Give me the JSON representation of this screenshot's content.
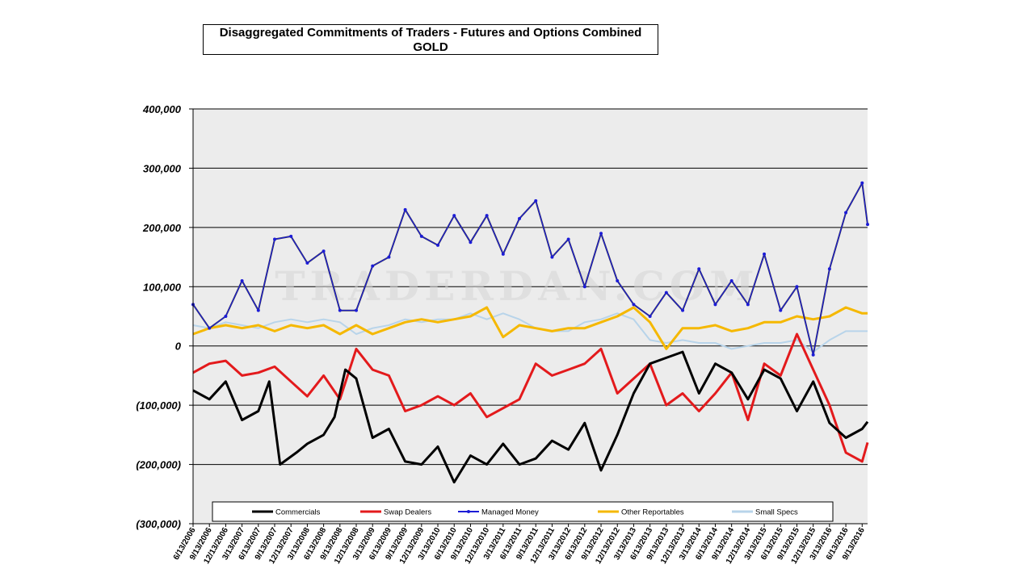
{
  "chart_data": {
    "type": "line",
    "title": "Disaggregated Commitments of Traders - Futures and Options Combined",
    "subtitle": "GOLD",
    "watermark": "TRADERDAN.COM",
    "ylim": [
      -300000,
      400000
    ],
    "yticks": [
      400000,
      300000,
      200000,
      100000,
      0,
      -100000,
      -200000,
      -300000
    ],
    "ytick_labels": [
      "400,000",
      "300,000",
      "200,000",
      "100,000",
      "0",
      "(100,000)",
      "(200,000)",
      "(300,000)"
    ],
    "x_start": "6/13/2006",
    "x_end": "10/11/2016",
    "xtick_labels": [
      "6/13/2006",
      "9/13/2006",
      "12/13/2006",
      "3/13/2007",
      "6/13/2007",
      "9/13/2007",
      "12/13/2007",
      "3/13/2008",
      "6/13/2008",
      "9/13/2008",
      "12/13/2008",
      "3/13/2009",
      "6/13/2009",
      "9/13/2009",
      "12/13/2009",
      "3/13/2010",
      "6/13/2010",
      "9/13/2010",
      "12/13/2010",
      "3/13/2011",
      "6/13/2011",
      "9/13/2011",
      "12/13/2011",
      "3/13/2012",
      "6/13/2012",
      "9/13/2012",
      "12/13/2012",
      "3/13/2013",
      "6/13/2013",
      "9/13/2013",
      "12/13/2013",
      "3/13/2014",
      "6/13/2014",
      "9/13/2014",
      "12/13/2014",
      "3/13/2015",
      "6/13/2015",
      "9/13/2015",
      "12/13/2015",
      "3/13/2016",
      "6/13/2016",
      "9/13/2016"
    ],
    "grid": "horizontal",
    "legend_position": "bottom",
    "series": [
      {
        "name": "Commercials",
        "color": "#000000",
        "points": [
          [
            "2006-06",
            -75000
          ],
          [
            "2006-09",
            -90000
          ],
          [
            "2006-12",
            -60000
          ],
          [
            "2007-03",
            -125000
          ],
          [
            "2007-06",
            -110000
          ],
          [
            "2007-08",
            -60000
          ],
          [
            "2007-10",
            -200000
          ],
          [
            "2008-01",
            -180000
          ],
          [
            "2008-03",
            -165000
          ],
          [
            "2008-06",
            -150000
          ],
          [
            "2008-08",
            -120000
          ],
          [
            "2008-10",
            -40000
          ],
          [
            "2008-12",
            -55000
          ],
          [
            "2009-03",
            -155000
          ],
          [
            "2009-06",
            -140000
          ],
          [
            "2009-09",
            -195000
          ],
          [
            "2009-12",
            -200000
          ],
          [
            "2010-03",
            -170000
          ],
          [
            "2010-06",
            -230000
          ],
          [
            "2010-09",
            -185000
          ],
          [
            "2010-12",
            -200000
          ],
          [
            "2011-03",
            -165000
          ],
          [
            "2011-06",
            -200000
          ],
          [
            "2011-09",
            -190000
          ],
          [
            "2011-12",
            -160000
          ],
          [
            "2012-03",
            -175000
          ],
          [
            "2012-06",
            -130000
          ],
          [
            "2012-09",
            -210000
          ],
          [
            "2012-12",
            -150000
          ],
          [
            "2013-03",
            -80000
          ],
          [
            "2013-06",
            -30000
          ],
          [
            "2013-09",
            -20000
          ],
          [
            "2013-12",
            -10000
          ],
          [
            "2014-03",
            -80000
          ],
          [
            "2014-06",
            -30000
          ],
          [
            "2014-09",
            -45000
          ],
          [
            "2014-12",
            -90000
          ],
          [
            "2015-03",
            -40000
          ],
          [
            "2015-06",
            -55000
          ],
          [
            "2015-09",
            -110000
          ],
          [
            "2015-12",
            -60000
          ],
          [
            "2016-03",
            -130000
          ],
          [
            "2016-06",
            -155000
          ],
          [
            "2016-09",
            -140000
          ],
          [
            "2016-10",
            -128000
          ]
        ]
      },
      {
        "name": "Swap Dealers",
        "color": "#e31a1c",
        "points": [
          [
            "2006-06",
            -45000
          ],
          [
            "2006-09",
            -30000
          ],
          [
            "2006-12",
            -25000
          ],
          [
            "2007-03",
            -50000
          ],
          [
            "2007-06",
            -45000
          ],
          [
            "2007-09",
            -35000
          ],
          [
            "2007-12",
            -60000
          ],
          [
            "2008-03",
            -85000
          ],
          [
            "2008-06",
            -50000
          ],
          [
            "2008-09",
            -90000
          ],
          [
            "2008-12",
            -5000
          ],
          [
            "2009-03",
            -40000
          ],
          [
            "2009-06",
            -50000
          ],
          [
            "2009-09",
            -110000
          ],
          [
            "2009-12",
            -100000
          ],
          [
            "2010-03",
            -85000
          ],
          [
            "2010-06",
            -100000
          ],
          [
            "2010-09",
            -80000
          ],
          [
            "2010-12",
            -120000
          ],
          [
            "2011-03",
            -105000
          ],
          [
            "2011-06",
            -90000
          ],
          [
            "2011-09",
            -30000
          ],
          [
            "2011-12",
            -50000
          ],
          [
            "2012-03",
            -40000
          ],
          [
            "2012-06",
            -30000
          ],
          [
            "2012-09",
            -5000
          ],
          [
            "2012-12",
            -80000
          ],
          [
            "2013-03",
            -55000
          ],
          [
            "2013-06",
            -30000
          ],
          [
            "2013-09",
            -100000
          ],
          [
            "2013-12",
            -80000
          ],
          [
            "2014-03",
            -110000
          ],
          [
            "2014-06",
            -80000
          ],
          [
            "2014-09",
            -45000
          ],
          [
            "2014-12",
            -125000
          ],
          [
            "2015-03",
            -30000
          ],
          [
            "2015-06",
            -50000
          ],
          [
            "2015-09",
            20000
          ],
          [
            "2015-12",
            -40000
          ],
          [
            "2016-03",
            -100000
          ],
          [
            "2016-06",
            -180000
          ],
          [
            "2016-09",
            -195000
          ],
          [
            "2016-10",
            -163000
          ]
        ]
      },
      {
        "name": "Managed Money",
        "color": "#1c1cd6",
        "points": [
          [
            "2006-06",
            70000
          ],
          [
            "2006-09",
            30000
          ],
          [
            "2006-12",
            50000
          ],
          [
            "2007-03",
            110000
          ],
          [
            "2007-06",
            60000
          ],
          [
            "2007-09",
            180000
          ],
          [
            "2007-12",
            185000
          ],
          [
            "2008-03",
            140000
          ],
          [
            "2008-06",
            160000
          ],
          [
            "2008-09",
            60000
          ],
          [
            "2008-12",
            60000
          ],
          [
            "2009-03",
            135000
          ],
          [
            "2009-06",
            150000
          ],
          [
            "2009-09",
            230000
          ],
          [
            "2009-12",
            185000
          ],
          [
            "2010-03",
            170000
          ],
          [
            "2010-06",
            220000
          ],
          [
            "2010-09",
            175000
          ],
          [
            "2010-12",
            220000
          ],
          [
            "2011-03",
            155000
          ],
          [
            "2011-06",
            215000
          ],
          [
            "2011-09",
            245000
          ],
          [
            "2011-12",
            150000
          ],
          [
            "2012-03",
            180000
          ],
          [
            "2012-06",
            100000
          ],
          [
            "2012-09",
            190000
          ],
          [
            "2012-12",
            110000
          ],
          [
            "2013-03",
            70000
          ],
          [
            "2013-06",
            50000
          ],
          [
            "2013-09",
            90000
          ],
          [
            "2013-12",
            60000
          ],
          [
            "2014-03",
            130000
          ],
          [
            "2014-06",
            70000
          ],
          [
            "2014-09",
            110000
          ],
          [
            "2014-12",
            70000
          ],
          [
            "2015-03",
            155000
          ],
          [
            "2015-06",
            60000
          ],
          [
            "2015-09",
            100000
          ],
          [
            "2015-12",
            -15000
          ],
          [
            "2016-03",
            130000
          ],
          [
            "2016-06",
            225000
          ],
          [
            "2016-09",
            275000
          ],
          [
            "2016-10",
            205000
          ]
        ]
      },
      {
        "name": "Other Reportables",
        "color": "#f5b800",
        "points": [
          [
            "2006-06",
            20000
          ],
          [
            "2006-09",
            30000
          ],
          [
            "2006-12",
            35000
          ],
          [
            "2007-03",
            30000
          ],
          [
            "2007-06",
            35000
          ],
          [
            "2007-09",
            25000
          ],
          [
            "2007-12",
            35000
          ],
          [
            "2008-03",
            30000
          ],
          [
            "2008-06",
            35000
          ],
          [
            "2008-09",
            20000
          ],
          [
            "2008-12",
            35000
          ],
          [
            "2009-03",
            20000
          ],
          [
            "2009-06",
            30000
          ],
          [
            "2009-09",
            40000
          ],
          [
            "2009-12",
            45000
          ],
          [
            "2010-03",
            40000
          ],
          [
            "2010-06",
            45000
          ],
          [
            "2010-09",
            50000
          ],
          [
            "2010-12",
            65000
          ],
          [
            "2011-03",
            15000
          ],
          [
            "2011-06",
            35000
          ],
          [
            "2011-09",
            30000
          ],
          [
            "2011-12",
            25000
          ],
          [
            "2012-03",
            30000
          ],
          [
            "2012-06",
            30000
          ],
          [
            "2012-09",
            40000
          ],
          [
            "2012-12",
            50000
          ],
          [
            "2013-03",
            65000
          ],
          [
            "2013-06",
            40000
          ],
          [
            "2013-09",
            -5000
          ],
          [
            "2013-12",
            30000
          ],
          [
            "2014-03",
            30000
          ],
          [
            "2014-06",
            35000
          ],
          [
            "2014-09",
            25000
          ],
          [
            "2014-12",
            30000
          ],
          [
            "2015-03",
            40000
          ],
          [
            "2015-06",
            40000
          ],
          [
            "2015-09",
            50000
          ],
          [
            "2015-12",
            45000
          ],
          [
            "2016-03",
            50000
          ],
          [
            "2016-06",
            65000
          ],
          [
            "2016-09",
            55000
          ],
          [
            "2016-10",
            55000
          ]
        ]
      },
      {
        "name": "Small Specs",
        "color": "#b8d4ea",
        "points": [
          [
            "2006-06",
            35000
          ],
          [
            "2006-09",
            30000
          ],
          [
            "2006-12",
            40000
          ],
          [
            "2007-03",
            35000
          ],
          [
            "2007-06",
            30000
          ],
          [
            "2007-09",
            40000
          ],
          [
            "2007-12",
            45000
          ],
          [
            "2008-03",
            40000
          ],
          [
            "2008-06",
            45000
          ],
          [
            "2008-09",
            40000
          ],
          [
            "2008-12",
            20000
          ],
          [
            "2009-03",
            30000
          ],
          [
            "2009-06",
            35000
          ],
          [
            "2009-09",
            45000
          ],
          [
            "2009-12",
            40000
          ],
          [
            "2010-03",
            45000
          ],
          [
            "2010-06",
            45000
          ],
          [
            "2010-09",
            55000
          ],
          [
            "2010-12",
            45000
          ],
          [
            "2011-03",
            55000
          ],
          [
            "2011-06",
            45000
          ],
          [
            "2011-09",
            30000
          ],
          [
            "2011-12",
            25000
          ],
          [
            "2012-03",
            25000
          ],
          [
            "2012-06",
            40000
          ],
          [
            "2012-09",
            45000
          ],
          [
            "2012-12",
            55000
          ],
          [
            "2013-03",
            45000
          ],
          [
            "2013-06",
            10000
          ],
          [
            "2013-09",
            5000
          ],
          [
            "2013-12",
            10000
          ],
          [
            "2014-03",
            5000
          ],
          [
            "2014-06",
            5000
          ],
          [
            "2014-09",
            -5000
          ],
          [
            "2014-12",
            0
          ],
          [
            "2015-03",
            5000
          ],
          [
            "2015-06",
            5000
          ],
          [
            "2015-09",
            10000
          ],
          [
            "2015-12",
            -10000
          ],
          [
            "2016-03",
            10000
          ],
          [
            "2016-06",
            25000
          ],
          [
            "2016-09",
            25000
          ],
          [
            "2016-10",
            25000
          ]
        ]
      }
    ]
  }
}
